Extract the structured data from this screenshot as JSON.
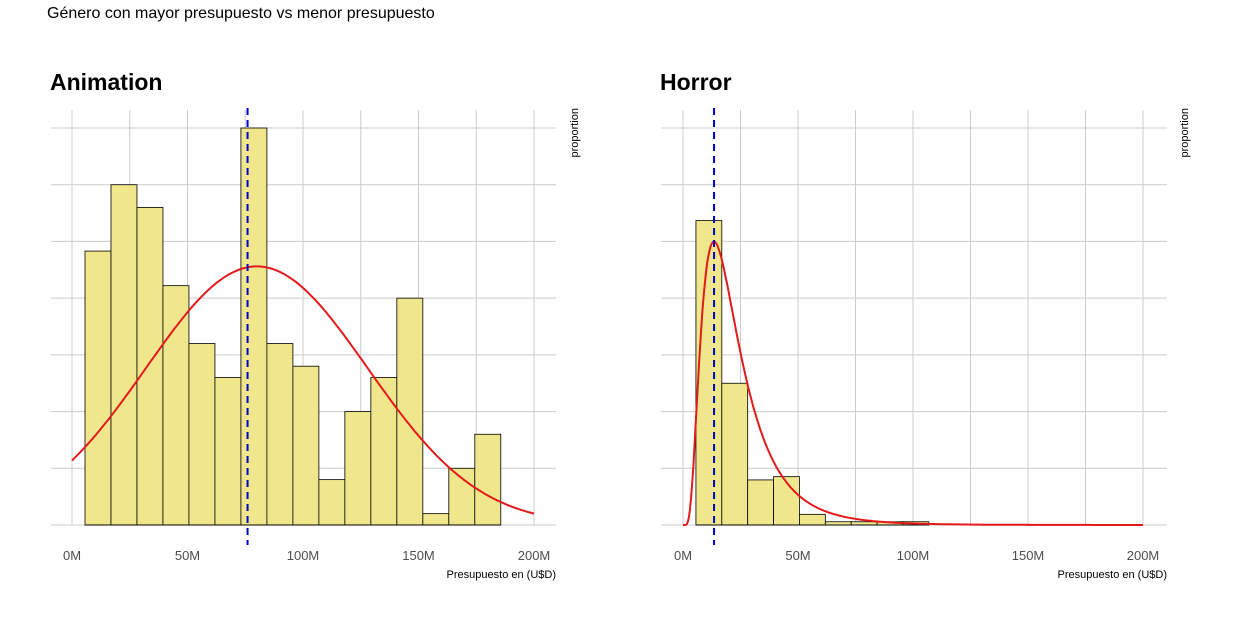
{
  "figure": {
    "title": "Género con mayor presupuesto vs menor presupuesto"
  },
  "colors": {
    "bar_fill": "#f0e68c",
    "bar_stroke": "#000000",
    "density": "#e31a1c",
    "mean_line": "#0000cc",
    "grid": "#cccccc"
  },
  "chart_data": [
    {
      "type": "bar",
      "title": "Animation",
      "xlabel": "Presupuesto en (U$D)",
      "ylabel": "proportion",
      "x_unit": "USD",
      "x_ticks": [
        0,
        50000000,
        100000000,
        150000000,
        200000000
      ],
      "x_tick_labels": [
        "0M",
        "50M",
        "100M",
        "150M",
        "200M"
      ],
      "xlim": [
        0,
        200000000
      ],
      "ylim": [
        0,
        0.07
      ],
      "y_tick_labels_shown": false,
      "grid": true,
      "bin_width": 11250000,
      "bins": [
        {
          "start": 5625000,
          "end": 16875000,
          "value": 0.0483
        },
        {
          "start": 16875000,
          "end": 28125000,
          "value": 0.06
        },
        {
          "start": 28125000,
          "end": 39375000,
          "value": 0.056
        },
        {
          "start": 39375000,
          "end": 50625000,
          "value": 0.0422
        },
        {
          "start": 50625000,
          "end": 61875000,
          "value": 0.032
        },
        {
          "start": 61875000,
          "end": 73125000,
          "value": 0.026
        },
        {
          "start": 73125000,
          "end": 84375000,
          "value": 0.07
        },
        {
          "start": 84375000,
          "end": 95625000,
          "value": 0.032
        },
        {
          "start": 95625000,
          "end": 106875000,
          "value": 0.028
        },
        {
          "start": 106875000,
          "end": 118125000,
          "value": 0.008
        },
        {
          "start": 118125000,
          "end": 129375000,
          "value": 0.02
        },
        {
          "start": 129375000,
          "end": 140625000,
          "value": 0.026
        },
        {
          "start": 140625000,
          "end": 151875000,
          "value": 0.04
        },
        {
          "start": 151875000,
          "end": 163125000,
          "value": 0.002
        },
        {
          "start": 163125000,
          "end": 174375000,
          "value": 0.01
        },
        {
          "start": 174375000,
          "end": 185625000,
          "value": 0.016
        }
      ],
      "density_curve": {
        "mean": 80000000,
        "sd": 48000000,
        "peak": 0.0456
      },
      "mean_line_x": 76000000
    },
    {
      "type": "bar",
      "title": "Horror",
      "xlabel": "Presupuesto en (U$D)",
      "ylabel": "proportion",
      "x_unit": "USD",
      "x_ticks": [
        0,
        50000000,
        100000000,
        150000000,
        200000000
      ],
      "x_tick_labels": [
        "0M",
        "50M",
        "100M",
        "150M",
        "200M"
      ],
      "xlim": [
        0,
        200000000
      ],
      "ylim": [
        0,
        0.085
      ],
      "y_tick_labels_shown": false,
      "grid": true,
      "bin_width": 11250000,
      "bins": [
        {
          "start": 5625000,
          "end": 16875000,
          "value": 0.0655
        },
        {
          "start": 16875000,
          "end": 28125000,
          "value": 0.0305
        },
        {
          "start": 28125000,
          "end": 39375000,
          "value": 0.0097
        },
        {
          "start": 39375000,
          "end": 50625000,
          "value": 0.0104
        },
        {
          "start": 50625000,
          "end": 61875000,
          "value": 0.0023
        },
        {
          "start": 61875000,
          "end": 73125000,
          "value": 0.0007
        },
        {
          "start": 73125000,
          "end": 84375000,
          "value": 0.0007
        },
        {
          "start": 84375000,
          "end": 95625000,
          "value": 0.0007
        },
        {
          "start": 95625000,
          "end": 106875000,
          "value": 0.0007
        }
      ],
      "density_curve": {
        "type": "lognormal",
        "mu": 16.8,
        "sigma": 0.62,
        "peak": 0.061
      },
      "mean_line_x": 13500000
    }
  ]
}
